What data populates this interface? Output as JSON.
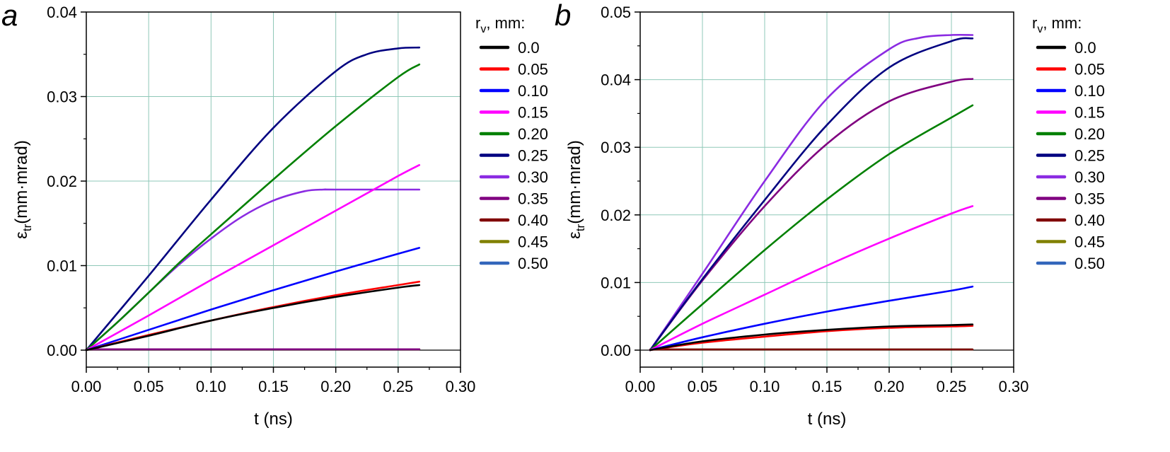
{
  "legend_title": "r_v, mm:",
  "chart_data": [
    {
      "panel": "a",
      "type": "line",
      "xlabel": "t (ns)",
      "ylabel": "ε_tr(mm·mrad)",
      "xlim": [
        0,
        0.3
      ],
      "ylim": [
        0,
        0.04
      ],
      "xticks": [
        "0.00",
        "0.05",
        "0.10",
        "0.15",
        "0.20",
        "0.25",
        "0.30"
      ],
      "yticks": [
        "0.00",
        "0.01",
        "0.02",
        "0.03",
        "0.04"
      ],
      "grid": true,
      "legend_placement": "right",
      "series": [
        {
          "name": "0.0",
          "color": "#000000",
          "x": [
            0.0,
            0.05,
            0.1,
            0.15,
            0.2,
            0.25,
            0.267
          ],
          "y": [
            0.0,
            0.0017,
            0.0035,
            0.005,
            0.0063,
            0.0074,
            0.0077
          ]
        },
        {
          "name": "0.05",
          "color": "#ff0000",
          "x": [
            0.0,
            0.05,
            0.1,
            0.15,
            0.2,
            0.25,
            0.267
          ],
          "y": [
            0.0,
            0.0018,
            0.0035,
            0.0051,
            0.0065,
            0.0077,
            0.0081
          ]
        },
        {
          "name": "0.10",
          "color": "#0000ff",
          "x": [
            0.0,
            0.05,
            0.1,
            0.15,
            0.2,
            0.25,
            0.267
          ],
          "y": [
            0.0,
            0.0024,
            0.0048,
            0.0071,
            0.0093,
            0.0114,
            0.0121
          ]
        },
        {
          "name": "0.15",
          "color": "#ff00ff",
          "x": [
            0.0,
            0.05,
            0.1,
            0.15,
            0.2,
            0.25,
            0.267
          ],
          "y": [
            0.0,
            0.0041,
            0.0083,
            0.0124,
            0.0165,
            0.0206,
            0.0219
          ]
        },
        {
          "name": "0.20",
          "color": "#008000",
          "x": [
            0.0,
            0.025,
            0.05,
            0.075,
            0.1,
            0.15,
            0.2,
            0.25,
            0.267
          ],
          "y": [
            0.0,
            0.0033,
            0.0068,
            0.0104,
            0.0137,
            0.0202,
            0.0265,
            0.0323,
            0.0338
          ]
        },
        {
          "name": "0.25",
          "color": "#000080",
          "x": [
            0.0,
            0.05,
            0.1,
            0.15,
            0.2,
            0.225,
            0.25,
            0.267
          ],
          "y": [
            0.0,
            0.0088,
            0.0178,
            0.0263,
            0.033,
            0.035,
            0.0357,
            0.0358
          ]
        },
        {
          "name": "0.30",
          "color": "#8b2be2",
          "x": [
            0.0,
            0.025,
            0.05,
            0.075,
            0.1,
            0.125,
            0.15,
            0.175,
            0.19,
            0.2,
            0.267
          ],
          "y": [
            0.0,
            0.0033,
            0.0068,
            0.0102,
            0.0132,
            0.0158,
            0.0177,
            0.0188,
            0.019,
            0.019,
            0.019
          ]
        },
        {
          "name": "0.35",
          "color": "#800080",
          "x": [
            0.0,
            0.267
          ],
          "y": [
            0.0001,
            0.0001
          ]
        },
        {
          "name": "0.40",
          "color": "#800000",
          "x": [
            0.0,
            0.267
          ],
          "y": [
            0.0001,
            0.0001
          ]
        },
        {
          "name": "0.45",
          "color": "#808000",
          "x": [
            0.0,
            0.267
          ],
          "y": [
            0.0001,
            0.0001
          ]
        },
        {
          "name": "0.50",
          "color": "#3366bb",
          "x": [
            0.0,
            0.267
          ],
          "y": [
            0.0001,
            0.0001
          ]
        }
      ]
    },
    {
      "panel": "b",
      "type": "line",
      "xlabel": "t (ns)",
      "ylabel": "ε_tr(mm·mrad)",
      "xlim": [
        0,
        0.3
      ],
      "ylim": [
        0,
        0.05
      ],
      "xticks": [
        "0.00",
        "0.05",
        "0.10",
        "0.15",
        "0.20",
        "0.25",
        "0.30"
      ],
      "yticks": [
        "0.00",
        "0.01",
        "0.02",
        "0.03",
        "0.04",
        "0.05"
      ],
      "grid": true,
      "legend_placement": "right",
      "series": [
        {
          "name": "0.0",
          "color": "#000000",
          "x": [
            0.008,
            0.05,
            0.1,
            0.15,
            0.2,
            0.25,
            0.267
          ],
          "y": [
            0.0,
            0.0013,
            0.0023,
            0.003,
            0.0035,
            0.0037,
            0.0038
          ]
        },
        {
          "name": "0.05",
          "color": "#ff0000",
          "x": [
            0.008,
            0.05,
            0.1,
            0.15,
            0.2,
            0.25,
            0.267
          ],
          "y": [
            0.0,
            0.0011,
            0.002,
            0.0028,
            0.0033,
            0.0035,
            0.0036
          ]
        },
        {
          "name": "0.10",
          "color": "#0000ff",
          "x": [
            0.008,
            0.05,
            0.1,
            0.15,
            0.2,
            0.25,
            0.267
          ],
          "y": [
            0.0,
            0.0019,
            0.0039,
            0.0057,
            0.0073,
            0.0088,
            0.0094
          ]
        },
        {
          "name": "0.15",
          "color": "#ff00ff",
          "x": [
            0.008,
            0.05,
            0.1,
            0.15,
            0.2,
            0.25,
            0.267
          ],
          "y": [
            0.0,
            0.0039,
            0.0082,
            0.0125,
            0.0165,
            0.0202,
            0.0213
          ]
        },
        {
          "name": "0.20",
          "color": "#008000",
          "x": [
            0.008,
            0.05,
            0.1,
            0.15,
            0.2,
            0.25,
            0.267
          ],
          "y": [
            0.0,
            0.0068,
            0.0148,
            0.0223,
            0.029,
            0.0344,
            0.0362
          ]
        },
        {
          "name": "0.25",
          "color": "#000080",
          "x": [
            0.008,
            0.05,
            0.1,
            0.15,
            0.2,
            0.25,
            0.267
          ],
          "y": [
            0.0,
            0.0105,
            0.0222,
            0.0333,
            0.0418,
            0.0457,
            0.0461
          ]
        },
        {
          "name": "0.30",
          "color": "#8b2be2",
          "x": [
            0.008,
            0.05,
            0.1,
            0.15,
            0.2,
            0.225,
            0.25,
            0.267
          ],
          "y": [
            0.0,
            0.0113,
            0.025,
            0.0372,
            0.0445,
            0.0462,
            0.0466,
            0.0466
          ]
        },
        {
          "name": "0.35",
          "color": "#800080",
          "x": [
            0.008,
            0.05,
            0.1,
            0.15,
            0.2,
            0.25,
            0.267
          ],
          "y": [
            0.0,
            0.0103,
            0.0213,
            0.0305,
            0.0368,
            0.0397,
            0.0401
          ]
        },
        {
          "name": "0.40",
          "color": "#800000",
          "x": [
            0.008,
            0.267
          ],
          "y": [
            0.0001,
            0.0001
          ]
        },
        {
          "name": "0.45",
          "color": "#808000",
          "x": [
            0.008,
            0.267
          ],
          "y": [
            0.0001,
            0.0001
          ]
        },
        {
          "name": "0.50",
          "color": "#3366bb",
          "x": [
            0.008,
            0.267
          ],
          "y": [
            0.0001,
            0.0001
          ]
        }
      ]
    }
  ]
}
